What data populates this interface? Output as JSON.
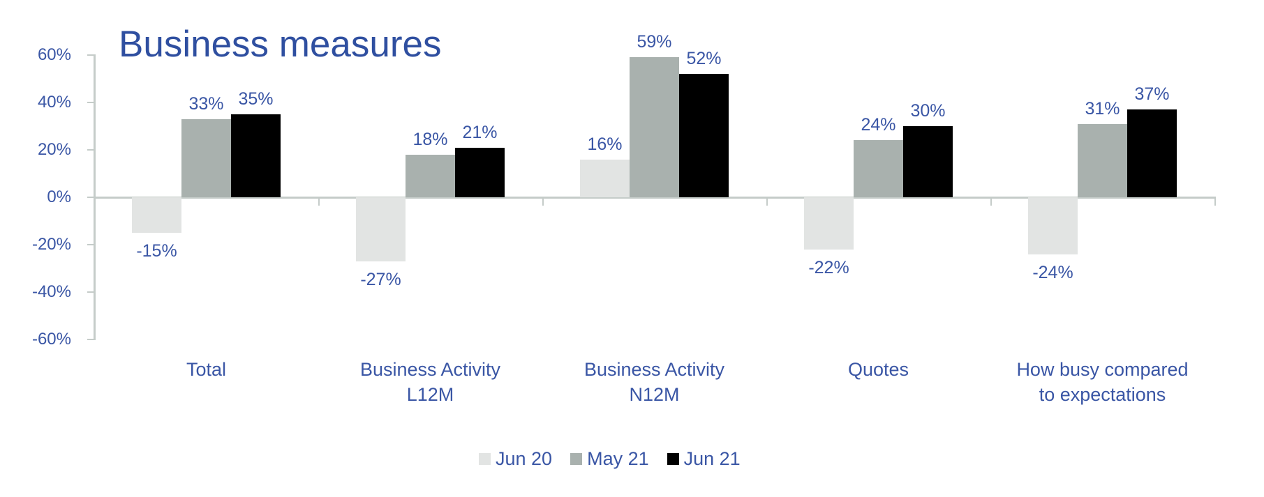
{
  "chart_data": {
    "type": "bar",
    "title": "Business measures",
    "xlabel": "",
    "ylabel": "",
    "ylim": [
      -60,
      60
    ],
    "yticks": [
      "60%",
      "40%",
      "20%",
      "0%",
      "-20%",
      "-40%",
      "-60%"
    ],
    "grid": false,
    "legend_position": "bottom",
    "categories": [
      "Total",
      "Business Activity L12M",
      "Business Activity N12M",
      "Quotes",
      "How busy compared to expectations"
    ],
    "category_lines": [
      [
        "Total"
      ],
      [
        "Business Activity",
        "L12M"
      ],
      [
        "Business Activity",
        "N12M"
      ],
      [
        "Quotes"
      ],
      [
        "How busy compared",
        "to expectations"
      ]
    ],
    "series": [
      {
        "name": "Jun 20",
        "color": "#E2E4E3",
        "values": [
          -15,
          -27,
          16,
          -22,
          -24
        ],
        "labels": [
          "-15%",
          "-27%",
          "16%",
          "-22%",
          "-24%"
        ]
      },
      {
        "name": "May 21",
        "color": "#A9B1AE",
        "values": [
          33,
          18,
          59,
          24,
          31
        ],
        "labels": [
          "33%",
          "18%",
          "59%",
          "24%",
          "31%"
        ]
      },
      {
        "name": "Jun 21",
        "color": "#000000",
        "values": [
          35,
          21,
          52,
          30,
          37
        ],
        "labels": [
          "35%",
          "21%",
          "52%",
          "30%",
          "37%"
        ]
      }
    ]
  },
  "colors": {
    "text": "#3A56A5",
    "axis": "#C5CCC9"
  }
}
